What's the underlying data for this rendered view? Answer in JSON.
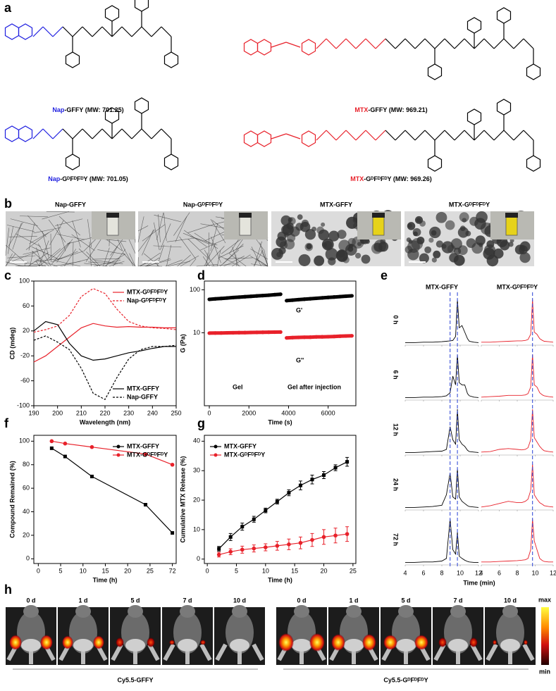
{
  "panel_letters": [
    "a",
    "b",
    "c",
    "d",
    "e",
    "f",
    "g",
    "h"
  ],
  "panel_a": {
    "compounds": [
      {
        "prefix": "Nap",
        "suffix": "-GFFY (MW: 701.25)",
        "color": "#1f1fe0"
      },
      {
        "prefix": "MTX",
        "suffix": "-GFFY (MW: 969.21)",
        "color": "#e8212a"
      },
      {
        "prefix": "Nap",
        "suffix": "-GᴰFᴰFᴰY (MW: 701.05)",
        "color": "#1f1fe0"
      },
      {
        "prefix": "MTX",
        "suffix": "-GᴰFᴰFᴰY (MW: 969.26)",
        "color": "#e8212a"
      }
    ]
  },
  "panel_b": {
    "titles": [
      "Nap-GFFY",
      "Nap-GᴰFᴰFᴰY",
      "MTX-GFFY",
      "MTX-GᴰFᴰFᴰY"
    ]
  },
  "chart_data": [
    {
      "type": "line",
      "xlabel": "Wavelength (nm)",
      "ylabel": "CD (mdeg)",
      "x": [
        190,
        195,
        200,
        205,
        210,
        215,
        220,
        225,
        230,
        235,
        240,
        245,
        250
      ],
      "xlim": [
        190,
        250
      ],
      "xticks": [
        190,
        200,
        210,
        220,
        230,
        240,
        250
      ],
      "ylim": [
        -100,
        100
      ],
      "yticks": [
        -100,
        -60,
        -20,
        20,
        60,
        100
      ],
      "series": [
        {
          "name": "MTX-GᴰFᴰFᴰY",
          "color": "#e8212a",
          "dash": false,
          "legend": "upper right",
          "values": [
            -30,
            -20,
            -5,
            10,
            25,
            32,
            28,
            26,
            27,
            26,
            26,
            25,
            25
          ]
        },
        {
          "name": "Nap-GᴰFᴰFᴰY",
          "color": "#e8212a",
          "dash": true,
          "legend": "upper right",
          "values": [
            18,
            22,
            28,
            45,
            75,
            88,
            80,
            55,
            35,
            28,
            25,
            24,
            22
          ]
        },
        {
          "name": "MTX-GFFY",
          "color": "#000000",
          "dash": false,
          "legend": "lower right",
          "values": [
            20,
            35,
            30,
            0,
            -20,
            -27,
            -25,
            -20,
            -15,
            -12,
            -8,
            -5,
            -5
          ]
        },
        {
          "name": "Nap-GFFY",
          "color": "#000000",
          "dash": true,
          "legend": "lower right",
          "values": [
            5,
            12,
            2,
            -10,
            -40,
            -80,
            -90,
            -55,
            -25,
            -10,
            -5,
            -5,
            -3
          ]
        }
      ]
    },
    {
      "type": "line",
      "xlabel": "Time (s)",
      "ylabel": "G (Pa)",
      "log_y": true,
      "x": [
        0,
        300,
        600,
        900,
        1200,
        1500,
        1800,
        2100,
        2400,
        2700,
        3000,
        3300,
        3600,
        3750,
        3900,
        4200,
        4500,
        4800,
        5100,
        5400,
        5700,
        6000,
        6300,
        6600,
        6900,
        7200
      ],
      "xlim": [
        -250,
        7400
      ],
      "xticks": [
        0,
        2000,
        4000,
        6000
      ],
      "ylim": [
        0.2,
        160
      ],
      "yticks": [
        10,
        100
      ],
      "series": [
        {
          "color": "#000000",
          "values": [
            60,
            61.5,
            63,
            64.5,
            66,
            67.5,
            69,
            70.5,
            72,
            73.5,
            75,
            77,
            79,
            null,
            56,
            57.5,
            59,
            60.5,
            62,
            63.5,
            65,
            66.5,
            68,
            69.5,
            71,
            72.5
          ]
        },
        {
          "color": "#e8212a",
          "values": [
            9.8,
            9.85,
            9.9,
            9.95,
            10,
            10.05,
            10.1,
            10.15,
            10.2,
            10.25,
            10.3,
            10.35,
            10.4,
            null,
            7.6,
            7.7,
            7.8,
            7.85,
            7.9,
            8,
            8.05,
            8.1,
            8.2,
            8.3,
            8.4,
            8.5
          ]
        }
      ],
      "annotations": [
        {
          "text": "G'",
          "color": "#000000"
        },
        {
          "text": "G''",
          "color": "#e8212a"
        },
        {
          "text": "Gel",
          "color": "#000000"
        },
        {
          "text": "Gel after injection",
          "color": "#000000"
        }
      ]
    },
    {
      "type": "chromatogram",
      "xlabel": "Time (min)",
      "x": [
        4,
        5,
        6,
        7,
        8,
        8.5,
        8.9,
        9.2,
        9.5,
        9.7,
        9.9,
        10.2,
        10.5,
        10.8,
        11,
        11.5,
        12
      ],
      "xlim": [
        4,
        12
      ],
      "xticks": [
        4,
        6,
        8,
        10,
        12
      ],
      "rows": [
        "0 h",
        "6 h",
        "12 h",
        "24 h",
        "72 h"
      ],
      "guide_color": "#3a50d8",
      "columns": [
        {
          "name": "MTX-GFFY",
          "color": "#000000",
          "guides": [
            8.9,
            9.7
          ],
          "traces": [
            [
              0.01,
              0.01,
              0.02,
              0.02,
              0.03,
              0.04,
              0.05,
              0.06,
              0.15,
              1,
              0.35,
              0.4,
              0.25,
              0.1,
              0.04,
              0.02,
              0.01
            ],
            [
              0.01,
              0.01,
              0.02,
              0.02,
              0.03,
              0.05,
              0.12,
              0.5,
              0.3,
              1,
              0.35,
              0.3,
              0.3,
              0.1,
              0.05,
              0.02,
              0.01
            ],
            [
              0.01,
              0.01,
              0.02,
              0.03,
              0.04,
              0.08,
              0.6,
              0.3,
              0.2,
              1,
              0.3,
              0.2,
              0.15,
              0.06,
              0.03,
              0.02,
              0.01
            ],
            [
              0.01,
              0.01,
              0.02,
              0.03,
              0.06,
              0.3,
              0.8,
              0.25,
              0.2,
              0.9,
              0.25,
              0.15,
              0.1,
              0.05,
              0.03,
              0.02,
              0.01
            ],
            [
              0.01,
              0.01,
              0.02,
              0.02,
              0.04,
              0.1,
              1,
              0.3,
              0.2,
              0.7,
              0.15,
              0.1,
              0.06,
              0.03,
              0.02,
              0.01,
              0.01
            ]
          ]
        },
        {
          "name": "MTX-GᴰFᴰFᴰY",
          "color": "#e8212a",
          "guides": [
            9.7
          ],
          "traces": [
            [
              0.02,
              0.02,
              0.03,
              0.04,
              0.05,
              0.05,
              0.06,
              0.08,
              0.2,
              1,
              0.25,
              0.2,
              0.1,
              0.06,
              0.04,
              0.03,
              0.02
            ],
            [
              0.02,
              0.03,
              0.04,
              0.06,
              0.06,
              0.06,
              0.07,
              0.1,
              0.25,
              1,
              0.3,
              0.25,
              0.12,
              0.07,
              0.05,
              0.03,
              0.02
            ],
            [
              0.02,
              0.03,
              0.08,
              0.1,
              0.08,
              0.07,
              0.08,
              0.12,
              0.3,
              1,
              0.35,
              0.25,
              0.15,
              0.08,
              0.05,
              0.03,
              0.02
            ],
            [
              0.02,
              0.05,
              0.1,
              0.15,
              0.12,
              0.12,
              0.15,
              0.2,
              0.4,
              1,
              0.3,
              0.2,
              0.12,
              0.08,
              0.05,
              0.03,
              0.02
            ],
            [
              0.02,
              0.02,
              0.03,
              0.04,
              0.05,
              0.06,
              0.07,
              0.1,
              0.3,
              1,
              0.5,
              0.3,
              0.1,
              0.05,
              0.03,
              0.02,
              0.02
            ]
          ]
        }
      ]
    },
    {
      "type": "line",
      "xlabel": "Time (h)",
      "ylabel": "Compound Remained (%)",
      "x_axis_break": true,
      "x": [
        3,
        6,
        12,
        24,
        72
      ],
      "xlim": [
        -1,
        80
      ],
      "xticks": [
        0,
        5,
        10,
        15,
        20,
        25,
        72
      ],
      "ylim": [
        -4,
        105
      ],
      "yticks": [
        0,
        20,
        40,
        60,
        80,
        100
      ],
      "series": [
        {
          "name": "MTX-GFFY",
          "color": "#000000",
          "marker": "square",
          "legend": "upper right",
          "values": [
            94,
            87,
            70,
            46,
            22
          ]
        },
        {
          "name": "MTX-GᴰFᴰFᴰY",
          "color": "#e8212a",
          "marker": "circle",
          "legend": "upper right",
          "values": [
            100,
            98,
            95,
            89,
            80
          ]
        }
      ]
    },
    {
      "type": "line",
      "xlabel": "Time (h)",
      "ylabel": "Cumulative MTX Release (%)",
      "x": [
        2,
        4,
        6,
        8,
        10,
        12,
        14,
        16,
        18,
        20,
        22,
        24
      ],
      "xlim": [
        -0.5,
        25.5
      ],
      "xticks": [
        0,
        5,
        10,
        15,
        20,
        25
      ],
      "ylim": [
        -1.5,
        42
      ],
      "yticks": [
        0,
        10,
        20,
        30,
        40
      ],
      "series": [
        {
          "name": "MTX-GFFY",
          "color": "#000000",
          "marker": "square",
          "legend": "upper left",
          "values": [
            3.5,
            7.5,
            11,
            13.5,
            16.5,
            19.5,
            22.5,
            25,
            27,
            28.5,
            31,
            33
          ],
          "errors": [
            0.8,
            1.2,
            1.2,
            1,
            0.8,
            0.8,
            1,
            1.5,
            1.5,
            1.2,
            1,
            1.5
          ]
        },
        {
          "name": "MTX-GᴰFᴰFᴰY",
          "color": "#e8212a",
          "marker": "circle",
          "legend": "upper left",
          "values": [
            1.5,
            2.5,
            3.2,
            3.6,
            4,
            4.5,
            5,
            5.5,
            6.5,
            7.5,
            8,
            8.5
          ],
          "errors": [
            0.8,
            1,
            1.2,
            1.2,
            1.2,
            1.5,
            1.8,
            2,
            2.2,
            2.5,
            2.5,
            2.5
          ]
        }
      ]
    }
  ],
  "panel_h": {
    "days": [
      "0 d",
      "1 d",
      "5 d",
      "7 d",
      "10 d"
    ],
    "groups": [
      "Cy5.5-GFFY",
      "Cy5.5-GᴰFᴰFᴰY"
    ],
    "scale": [
      "max",
      "min"
    ]
  }
}
